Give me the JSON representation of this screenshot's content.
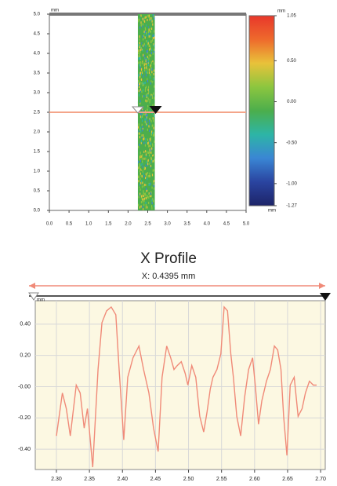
{
  "chart_data": [
    {
      "type": "heatmap",
      "unit": "mm",
      "xlim": [
        0,
        5
      ],
      "ylim": [
        0,
        5
      ],
      "xticks": [
        {
          "value": 0,
          "label": "0.0"
        },
        0.5,
        {
          "value": 1,
          "label": "1.0"
        },
        1.5,
        {
          "value": 2,
          "label": "2.0"
        },
        2.5,
        {
          "value": 3,
          "label": "3.0"
        },
        3.5,
        {
          "value": 4,
          "label": "4.0"
        },
        4.5,
        {
          "value": 5,
          "label": "5.0"
        }
      ],
      "yticks": [
        {
          "value": 0,
          "label": "0.0"
        },
        0.5,
        {
          "value": 1,
          "label": "1.0"
        },
        1.5,
        {
          "value": 2,
          "label": "2.0"
        },
        2.5,
        {
          "value": 3,
          "label": "3.0"
        },
        3.5,
        {
          "value": 4,
          "label": "4.0"
        },
        4.5,
        {
          "value": 5,
          "label": "5.0"
        }
      ],
      "scan_xlim": [
        2.25,
        2.68
      ],
      "cursor_y": 2.5,
      "cursor_x": [
        2.25,
        2.7
      ],
      "cursor_color": "#f4a58a",
      "colorbar": {
        "clim": [
          -1.27,
          1.05
        ],
        "ticks": [
          1.05,
          {
            "value": 0.5,
            "label": "0.50"
          },
          {
            "value": 0,
            "label": "0.00"
          },
          {
            "value": -0.5,
            "label": "-0.50"
          },
          {
            "value": -1,
            "label": "-1.00"
          },
          -1.27
        ],
        "colors": [
          "#e8372b",
          "#ee6a2c",
          "#e9c23a",
          "#8cc63f",
          "#4cae4c",
          "#2db5a6",
          "#3a86d4",
          "#2a44a0",
          "#1d2468"
        ]
      }
    },
    {
      "type": "line",
      "title": "X Profile",
      "subtitle": "X: 0.4395 mm",
      "unit": "mm",
      "x": [
        2.3,
        2.309,
        2.315,
        2.321,
        2.33,
        2.336,
        2.342,
        2.347,
        2.355,
        2.363,
        2.369,
        2.376,
        2.383,
        2.39,
        2.395,
        2.402,
        2.408,
        2.416,
        2.425,
        2.432,
        2.44,
        2.447,
        2.454,
        2.46,
        2.467,
        2.473,
        2.478,
        2.483,
        2.489,
        2.495,
        2.499,
        2.505,
        2.511,
        2.517,
        2.523,
        2.528,
        2.533,
        2.537,
        2.543,
        2.549,
        2.554,
        2.559,
        2.564,
        2.568,
        2.573,
        2.579,
        2.585,
        2.591,
        2.597,
        2.601,
        2.606,
        2.611,
        2.618,
        2.624,
        2.63,
        2.635,
        2.64,
        2.644,
        2.649,
        2.654,
        2.66,
        2.666,
        2.672,
        2.677,
        2.683,
        2.689,
        2.694
      ],
      "series": [
        {
          "color": "#f08a78",
          "values": [
            -0.315,
            -0.04,
            -0.14,
            -0.315,
            0.01,
            -0.04,
            -0.265,
            -0.14,
            -0.515,
            0.11,
            0.41,
            0.485,
            0.51,
            0.46,
            0.11,
            -0.34,
            0.06,
            0.185,
            0.26,
            0.11,
            -0.04,
            -0.265,
            -0.415,
            0.06,
            0.26,
            0.185,
            0.11,
            0.135,
            0.16,
            0.085,
            0.01,
            0.135,
            0.06,
            -0.19,
            -0.29,
            -0.165,
            -0.015,
            0.06,
            0.11,
            0.21,
            0.51,
            0.485,
            0.21,
            0.06,
            -0.19,
            -0.315,
            -0.065,
            0.11,
            0.185,
            0.01,
            -0.24,
            -0.09,
            0.035,
            0.11,
            0.26,
            0.235,
            0.11,
            -0.19,
            -0.44,
            0.01,
            0.06,
            -0.19,
            -0.14,
            -0.04,
            0.035,
            0.01,
            0.01
          ]
        }
      ],
      "xlim": [
        2.268,
        2.707
      ],
      "ylim": [
        -0.53,
        0.55
      ],
      "xticks": [
        {
          "value": 2.3,
          "label": "2.30"
        },
        2.35,
        {
          "value": 2.4,
          "label": "2.40"
        },
        2.45,
        {
          "value": 2.5,
          "label": "2.50"
        },
        2.55,
        {
          "value": 2.6,
          "label": "2.60"
        },
        2.65,
        {
          "value": 2.7,
          "label": "2.70"
        }
      ],
      "yticks": [
        {
          "value": 0.4,
          "label": "0.40"
        },
        {
          "value": 0.2,
          "label": "0.20"
        },
        {
          "value": 0,
          "label": "-0.00"
        },
        {
          "value": -0.2,
          "label": "-0.20"
        },
        {
          "value": -0.4,
          "label": "-0.40"
        }
      ],
      "grid": true,
      "background": "#fcf8e2",
      "range_color": "#f08a78"
    }
  ]
}
